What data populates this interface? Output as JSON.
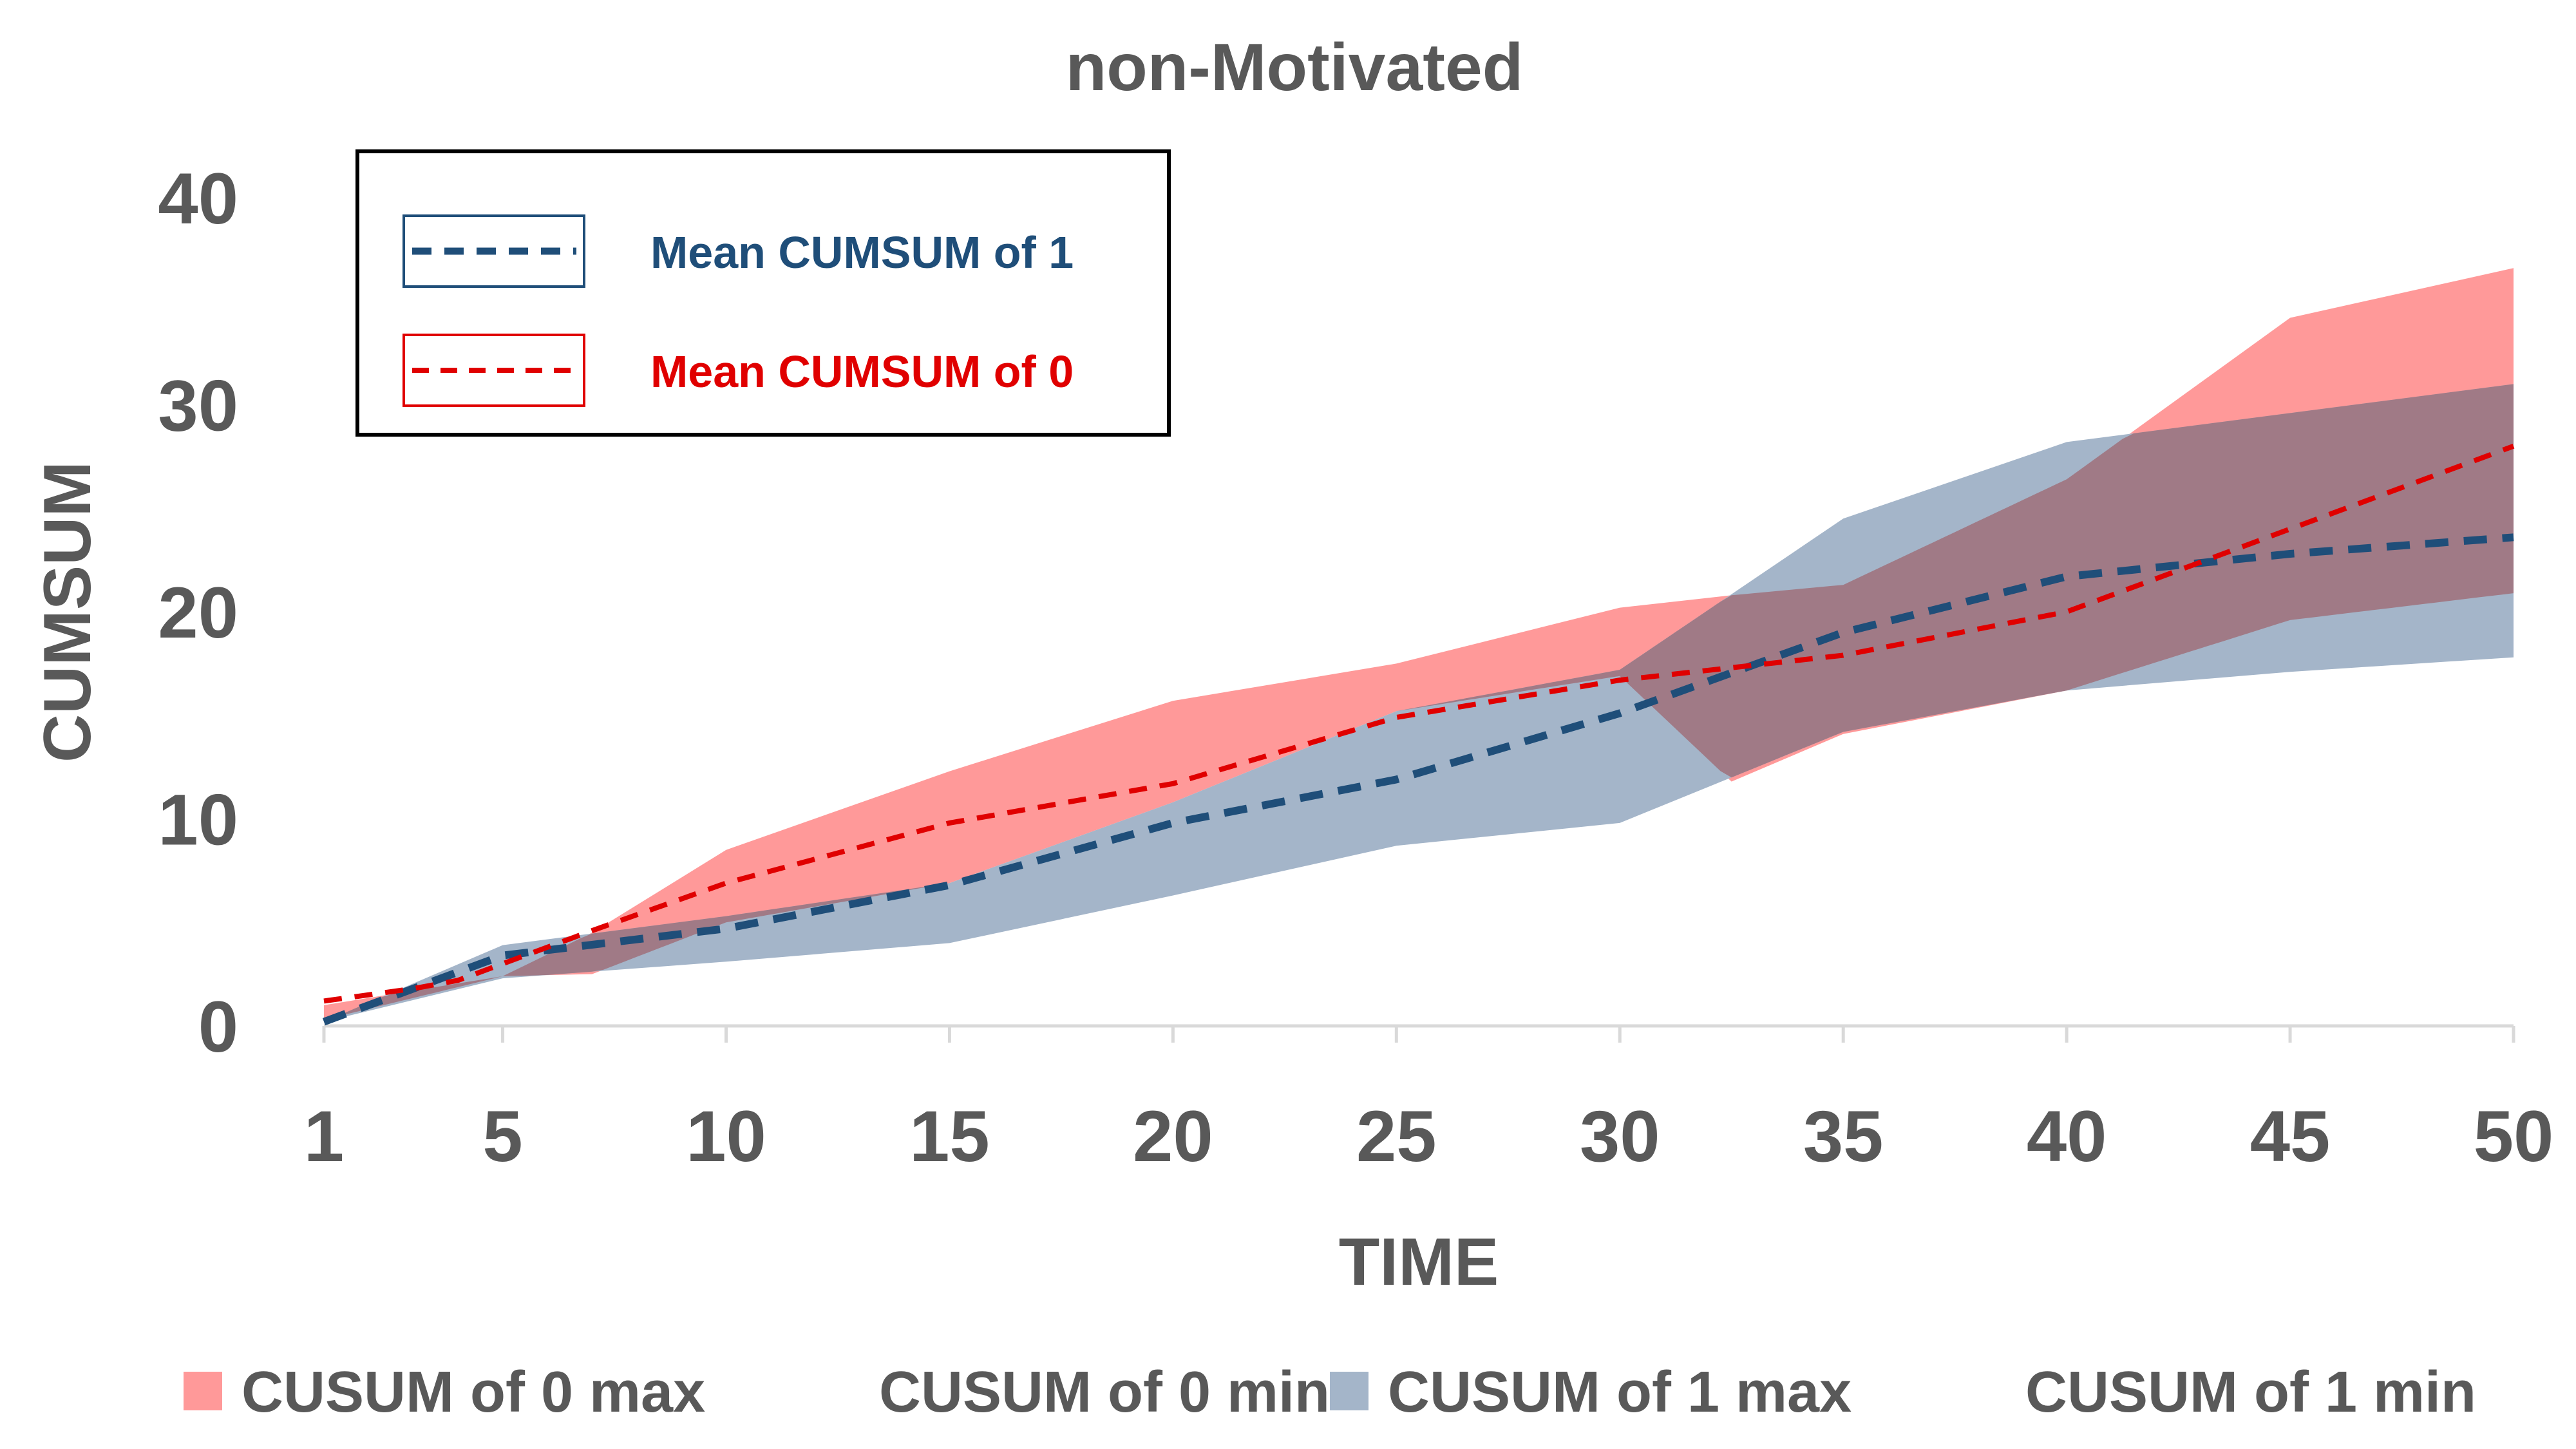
{
  "chart_data": {
    "type": "area",
    "title": "non-Motivated",
    "xlabel": "TIME",
    "ylabel": "CUMSUM",
    "x_ticks": [
      "1",
      "5",
      "10",
      "15",
      "20",
      "25",
      "30",
      "35",
      "40",
      "45",
      "50"
    ],
    "y_ticks": [
      "0",
      "10",
      "20",
      "30",
      "40"
    ],
    "ylim": [
      0,
      40
    ],
    "xlim": [
      1,
      50
    ],
    "grid": false,
    "colors": {
      "band0": "#ff9999",
      "band1": "#a4b5c9",
      "overlap": "#a07a86",
      "mean1": "#1f4e79",
      "mean0": "#e00000",
      "axis": "#d9d9d9",
      "text": "#595959"
    },
    "bands": [
      {
        "upper_name": "CUSUM of 0 max",
        "lower_name": "CUSUM of 0 min",
        "color": "#ff9999",
        "upper": [
          [
            1,
            1.0
          ],
          [
            5,
            2.4
          ],
          [
            7,
            4.5
          ],
          [
            10,
            8.5
          ],
          [
            15,
            12.3
          ],
          [
            20,
            15.7
          ],
          [
            25,
            17.5
          ],
          [
            30,
            20.2
          ],
          [
            32.5,
            20.8
          ],
          [
            35,
            21.3
          ],
          [
            40,
            26.4
          ],
          [
            45,
            34.2
          ],
          [
            50,
            36.6
          ]
        ],
        "lower": [
          [
            1,
            0.3
          ],
          [
            5,
            2.4
          ],
          [
            7,
            2.5
          ],
          [
            10,
            5.0
          ],
          [
            15,
            6.9
          ],
          [
            20,
            10.8
          ],
          [
            25,
            15.2
          ],
          [
            30,
            16.9
          ],
          [
            32.5,
            11.8
          ],
          [
            35,
            14.1
          ],
          [
            40,
            16.2
          ],
          [
            45,
            19.6
          ],
          [
            50,
            20.9
          ]
        ]
      },
      {
        "upper_name": "CUSUM of 1 max",
        "lower_name": "CUSUM of 1 min",
        "color": "#a4b5c9",
        "upper": [
          [
            1,
            0.2
          ],
          [
            5,
            3.9
          ],
          [
            10,
            5.3
          ],
          [
            15,
            6.9
          ],
          [
            20,
            10.8
          ],
          [
            25,
            15.2
          ],
          [
            30,
            17.2
          ],
          [
            35,
            24.5
          ],
          [
            40,
            28.2
          ],
          [
            45,
            29.6
          ],
          [
            50,
            31.0
          ]
        ],
        "lower": [
          [
            1,
            0.2
          ],
          [
            5,
            2.3
          ],
          [
            10,
            3.1
          ],
          [
            15,
            4.0
          ],
          [
            20,
            6.3
          ],
          [
            25,
            8.7
          ],
          [
            30,
            9.8
          ],
          [
            35,
            14.2
          ],
          [
            40,
            16.2
          ],
          [
            45,
            17.1
          ],
          [
            50,
            17.8
          ]
        ]
      }
    ],
    "series": [
      {
        "name": "Mean CUMSUM of 1",
        "style": "dashed",
        "color": "#1f4e79",
        "points": [
          [
            1,
            0.2
          ],
          [
            5,
            3.4
          ],
          [
            10,
            4.7
          ],
          [
            15,
            6.8
          ],
          [
            20,
            9.8
          ],
          [
            25,
            11.9
          ],
          [
            30,
            15.1
          ],
          [
            35,
            19.0
          ],
          [
            40,
            21.7
          ],
          [
            45,
            22.8
          ],
          [
            50,
            23.6
          ]
        ]
      },
      {
        "name": "Mean CUMSUM of 0",
        "style": "dashed",
        "color": "#e00000",
        "points": [
          [
            1,
            1.2
          ],
          [
            3,
            1.8
          ],
          [
            4,
            2.2
          ],
          [
            5,
            3.0
          ],
          [
            7,
            4.6
          ],
          [
            10,
            6.9
          ],
          [
            15,
            9.8
          ],
          [
            20,
            11.7
          ],
          [
            25,
            14.9
          ],
          [
            30,
            16.7
          ],
          [
            35,
            17.9
          ],
          [
            40,
            20.0
          ],
          [
            45,
            24.0
          ],
          [
            50,
            28.0
          ]
        ]
      }
    ],
    "legend_box": {
      "placement": "top-left",
      "entries": [
        "Mean CUMSUM of 1",
        "Mean CUMSUM of 0"
      ]
    },
    "bottom_legend": {
      "placement": "bottom",
      "entries": [
        {
          "label": "CUSUM of 0 max",
          "swatch": "#ff9999"
        },
        {
          "label": "CUSUM of 0 min",
          "swatch": "none"
        },
        {
          "label": "CUSUM of 1 max",
          "swatch": "#a4b5c9"
        },
        {
          "label": "CUSUM of 1 min",
          "swatch": "none"
        }
      ]
    }
  }
}
